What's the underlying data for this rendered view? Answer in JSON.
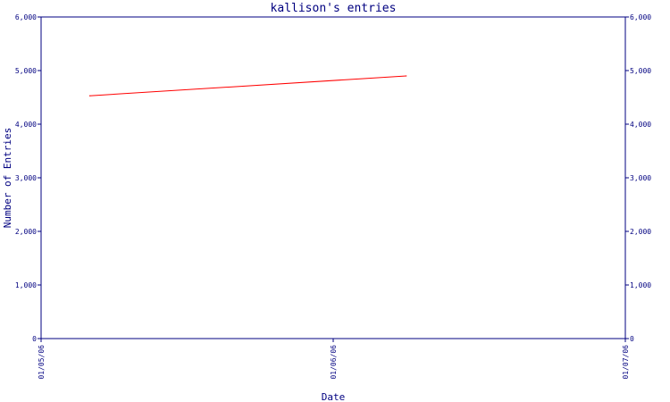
{
  "chart_data": {
    "type": "line",
    "title": "kallison's entries",
    "xlabel": "Date",
    "ylabel": "Number of Entries",
    "x_ticks": [
      "01/05/06",
      "01/06/06",
      "01/07/06"
    ],
    "ylim": [
      0,
      6000
    ],
    "y_ticks": [
      0,
      1000,
      2000,
      3000,
      4000,
      5000,
      6000
    ],
    "y_tick_labels": [
      "0",
      "1,000",
      "2,000",
      "3,000",
      "4,000",
      "5,000",
      "6,000"
    ],
    "grid": false,
    "series": [
      {
        "color": "#ff0000",
        "points": [
          {
            "x": "2006-01-05 04:00",
            "y": 4530
          },
          {
            "x": "2006-01-06 06:00",
            "y": 4900
          }
        ]
      }
    ],
    "colors": {
      "axis": "#000080",
      "text": "#000080",
      "line": "#ff0000",
      "background": "#ffffff"
    }
  }
}
